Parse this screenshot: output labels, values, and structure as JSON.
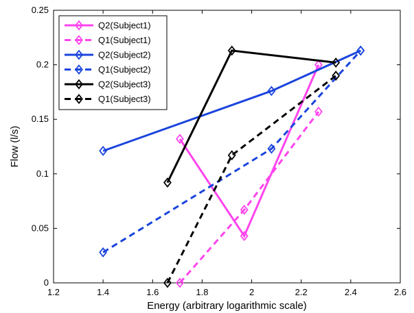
{
  "chart_data": {
    "type": "line",
    "title": "",
    "xlabel": "Energy (arbitrary logarithmic scale)",
    "ylabel": "Flow (l/s)",
    "xlim": [
      1.2,
      2.6
    ],
    "ylim": [
      0,
      0.25
    ],
    "xticks": [
      "1.2",
      "1.4",
      "1.6",
      "1.8",
      "2",
      "2.2",
      "2.4",
      "2.6"
    ],
    "yticks": [
      "0",
      "0.05",
      "0.1",
      "0.15",
      "0.2",
      "0.25"
    ],
    "grid": false,
    "legend_position": "top-left",
    "series": [
      {
        "name": "Q2(Subject1)",
        "color": "#ff44ee",
        "dash": "solid",
        "x": [
          1.71,
          1.97,
          2.27
        ],
        "y": [
          0.132,
          0.043,
          0.2
        ]
      },
      {
        "name": "Q1(Subject1)",
        "color": "#ff44ee",
        "dash": "dashed",
        "x": [
          1.71,
          1.97,
          2.27
        ],
        "y": [
          0.0,
          0.067,
          0.157
        ]
      },
      {
        "name": "Q2(Subject2)",
        "color": "#1a44dd",
        "dash": "solid",
        "x": [
          1.4,
          2.08,
          2.44
        ],
        "y": [
          0.121,
          0.176,
          0.213
        ]
      },
      {
        "name": "Q1(Subject2)",
        "color": "#1a44dd",
        "dash": "dashed",
        "x": [
          1.4,
          2.08,
          2.44
        ],
        "y": [
          0.028,
          0.123,
          0.213
        ]
      },
      {
        "name": "Q2(Subject3)",
        "color": "#000000",
        "dash": "solid",
        "x": [
          1.66,
          1.92,
          2.34
        ],
        "y": [
          0.092,
          0.213,
          0.202
        ]
      },
      {
        "name": "Q1(Subject3)",
        "color": "#000000",
        "dash": "dashed",
        "x": [
          1.66,
          1.92,
          2.34
        ],
        "y": [
          0.0,
          0.117,
          0.19
        ]
      }
    ]
  }
}
